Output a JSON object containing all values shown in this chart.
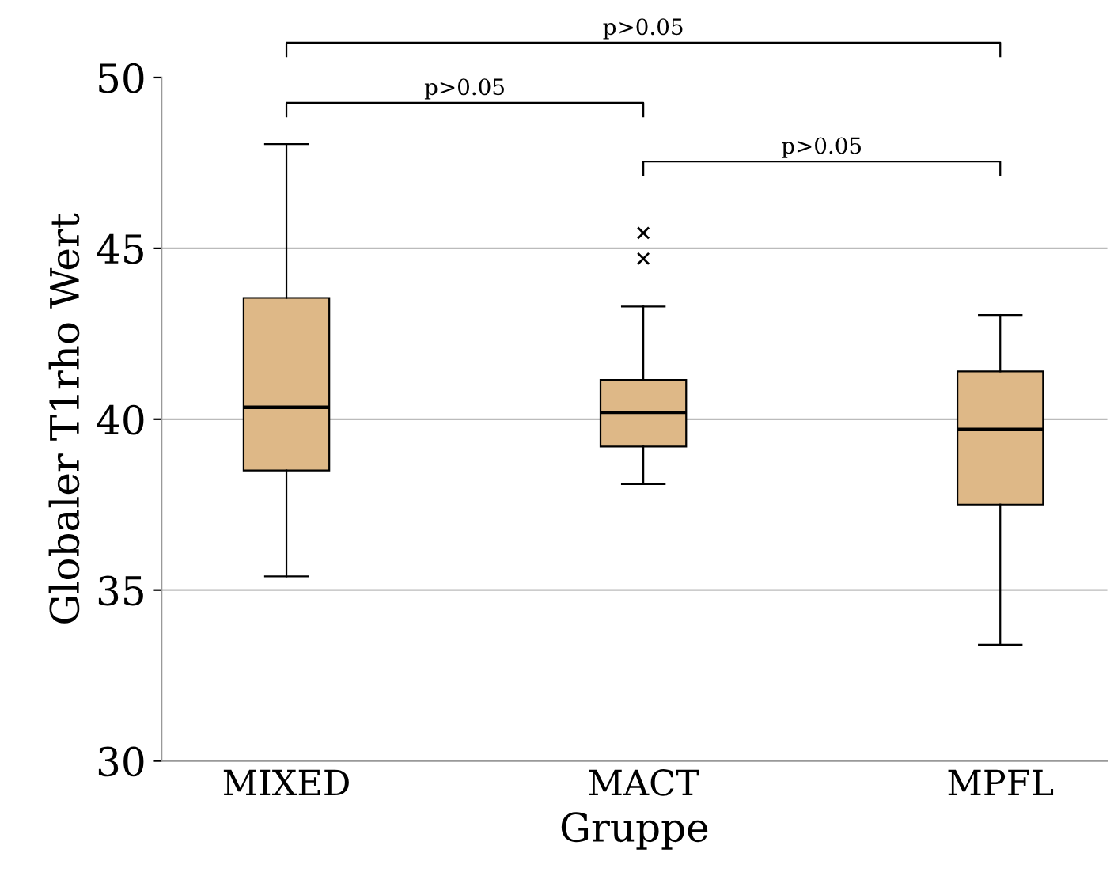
{
  "chart_data": {
    "type": "box",
    "xlabel": "Gruppe",
    "ylabel": "Globaler T1rho Wert",
    "categories": [
      "MIXED",
      "MACT",
      "MPFL"
    ],
    "boxes": [
      {
        "low": 35.4,
        "q1": 38.5,
        "median": 40.35,
        "q3": 43.55,
        "high": 48.05
      },
      {
        "low": 38.1,
        "q1": 39.2,
        "median": 40.2,
        "q3": 41.15,
        "high": 43.3,
        "outliers": [
          44.7,
          45.45
        ]
      },
      {
        "low": 33.4,
        "q1": 37.5,
        "median": 39.7,
        "q3": 41.4,
        "high": 43.05
      }
    ],
    "color": "#deb887",
    "ylim": [
      30,
      50
    ],
    "yticks": [
      30,
      35,
      40,
      45,
      50
    ],
    "grid": "y",
    "annotations": [
      "p>0.05",
      "p>0.05",
      "p>0.05"
    ]
  }
}
